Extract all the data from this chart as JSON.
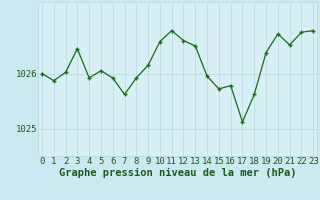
{
  "x": [
    0,
    1,
    2,
    3,
    4,
    5,
    6,
    7,
    8,
    9,
    10,
    11,
    12,
    13,
    14,
    15,
    16,
    17,
    18,
    19,
    20,
    21,
    22,
    23
  ],
  "y": [
    1026.0,
    1025.87,
    1026.02,
    1026.45,
    1025.92,
    1026.05,
    1025.92,
    1025.62,
    1025.92,
    1026.15,
    1026.58,
    1026.78,
    1026.6,
    1026.5,
    1025.95,
    1025.72,
    1025.78,
    1025.12,
    1025.62,
    1026.38,
    1026.72,
    1026.52,
    1026.75,
    1026.78
  ],
  "line_color": "#1a6b1a",
  "marker_color": "#1a6b1a",
  "bg_color": "#d7eff5",
  "grid_color": "#b8d8e0",
  "title": "Graphe pression niveau de la mer (hPa)",
  "ylabel_ticks": [
    1025,
    1026
  ],
  "ylim": [
    1024.5,
    1027.3
  ],
  "xlim": [
    -0.3,
    23.3
  ],
  "xticks": [
    0,
    1,
    2,
    3,
    4,
    5,
    6,
    7,
    8,
    9,
    10,
    11,
    12,
    13,
    14,
    15,
    16,
    17,
    18,
    19,
    20,
    21,
    22,
    23
  ],
  "title_fontsize": 7.5,
  "tick_fontsize": 6.5,
  "axis_label_color": "#1a5c1a",
  "outer_bg": "#cce8f0"
}
